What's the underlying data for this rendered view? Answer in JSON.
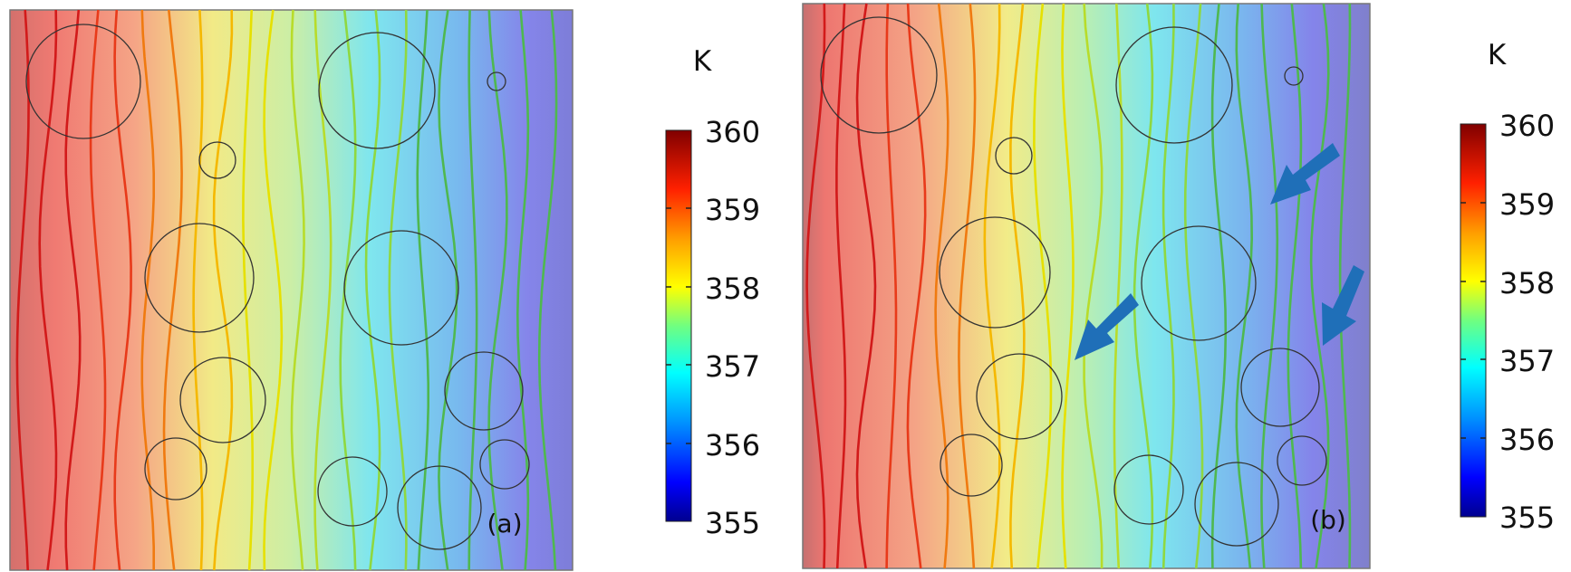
{
  "panels": [
    {
      "id": "a",
      "label": "(a)",
      "unit": "K",
      "colorbar_ticks": [
        "360",
        "359",
        "358",
        "357",
        "356",
        "355"
      ]
    },
    {
      "id": "b",
      "label": "(b)",
      "unit": "K",
      "colorbar_ticks": [
        "360",
        "359",
        "358",
        "357",
        "356",
        "355"
      ],
      "arrows": 3
    }
  ],
  "scale": {
    "min": 355,
    "max": 360,
    "colors": [
      "#00008f",
      "#0000ff",
      "#00a0ff",
      "#00ffff",
      "#60ff90",
      "#c0ff30",
      "#ffff00",
      "#ffa000",
      "#ff3000",
      "#c00000",
      "#800000"
    ]
  },
  "field_colors": {
    "left": "#e0605a",
    "mid": "#f4f08c",
    "center": "#80e8f0",
    "right": "#8080e6"
  },
  "arrow_color": "#1f6fb8"
}
